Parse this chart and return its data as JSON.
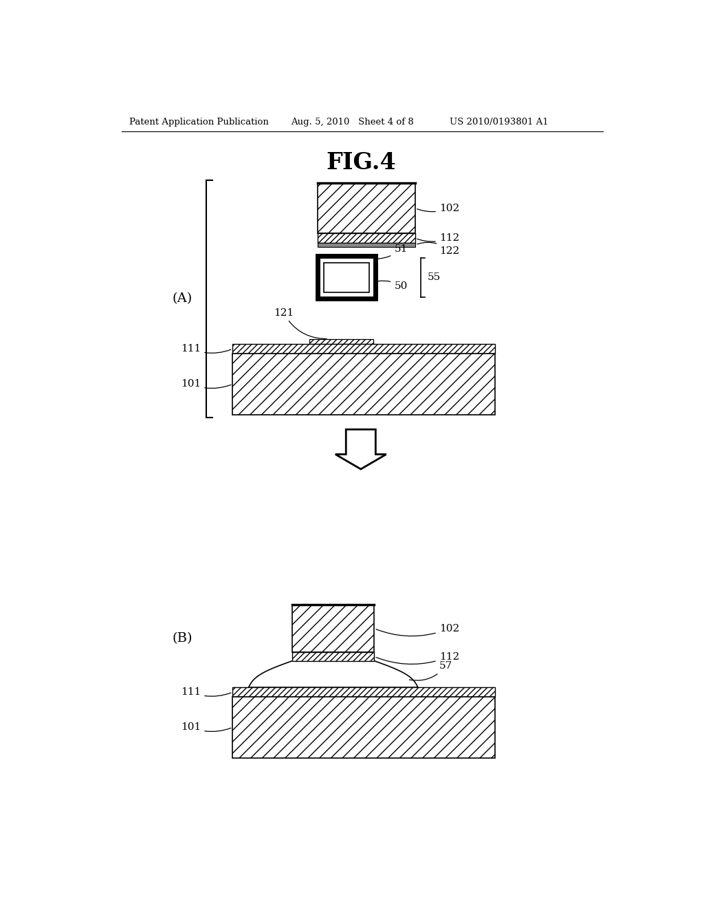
{
  "bg_color": "#ffffff",
  "header_left": "Patent Application Publication",
  "header_mid": "Aug. 5, 2010   Sheet 4 of 8",
  "header_right": "US 2010/0193801 A1",
  "fig_title": "FIG.4",
  "label_A": "(A)",
  "label_B": "(B)"
}
